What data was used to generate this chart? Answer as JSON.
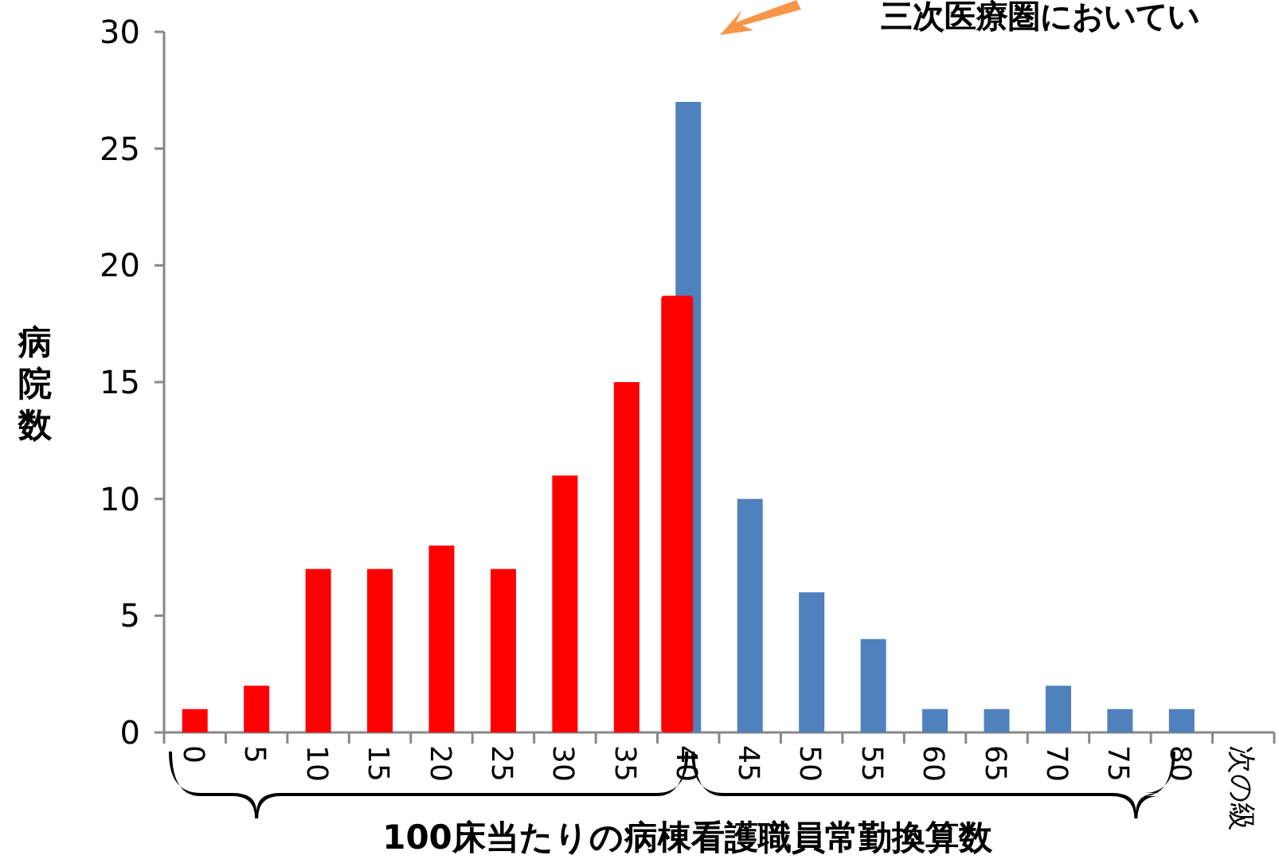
{
  "chart_data": {
    "type": "bar",
    "categories": [
      "0",
      "5",
      "10",
      "15",
      "20",
      "25",
      "30",
      "35",
      "40",
      "45",
      "50",
      "55",
      "60",
      "65",
      "70",
      "75",
      "80",
      "次の級"
    ],
    "series": [
      {
        "color": "#4f81bd",
        "colors": [
          "#ff0000",
          "#ff0000",
          "#ff0000",
          "#ff0000",
          "#ff0000",
          "#ff0000",
          "#ff0000",
          "#ff0000",
          null,
          null,
          null,
          null,
          null,
          null,
          null,
          null,
          null,
          null
        ],
        "values": [
          1,
          2,
          7,
          7,
          8,
          7,
          11,
          15,
          27,
          10,
          6,
          4,
          1,
          1,
          2,
          1,
          1,
          0
        ]
      },
      {
        "color": "#ff0000",
        "values": [
          null,
          null,
          null,
          null,
          null,
          null,
          null,
          null,
          18.7,
          null,
          null,
          null,
          null,
          null,
          null,
          null,
          null,
          null
        ]
      }
    ],
    "ylim": [
      0,
      30
    ],
    "yticks": [
      0,
      5,
      10,
      15,
      20,
      25,
      30
    ],
    "xlabel": "100床当たりの病棟看護職員常勤換算数",
    "ylabel": "病院数",
    "annotations": [
      "三次医療圏においてい"
    ]
  }
}
